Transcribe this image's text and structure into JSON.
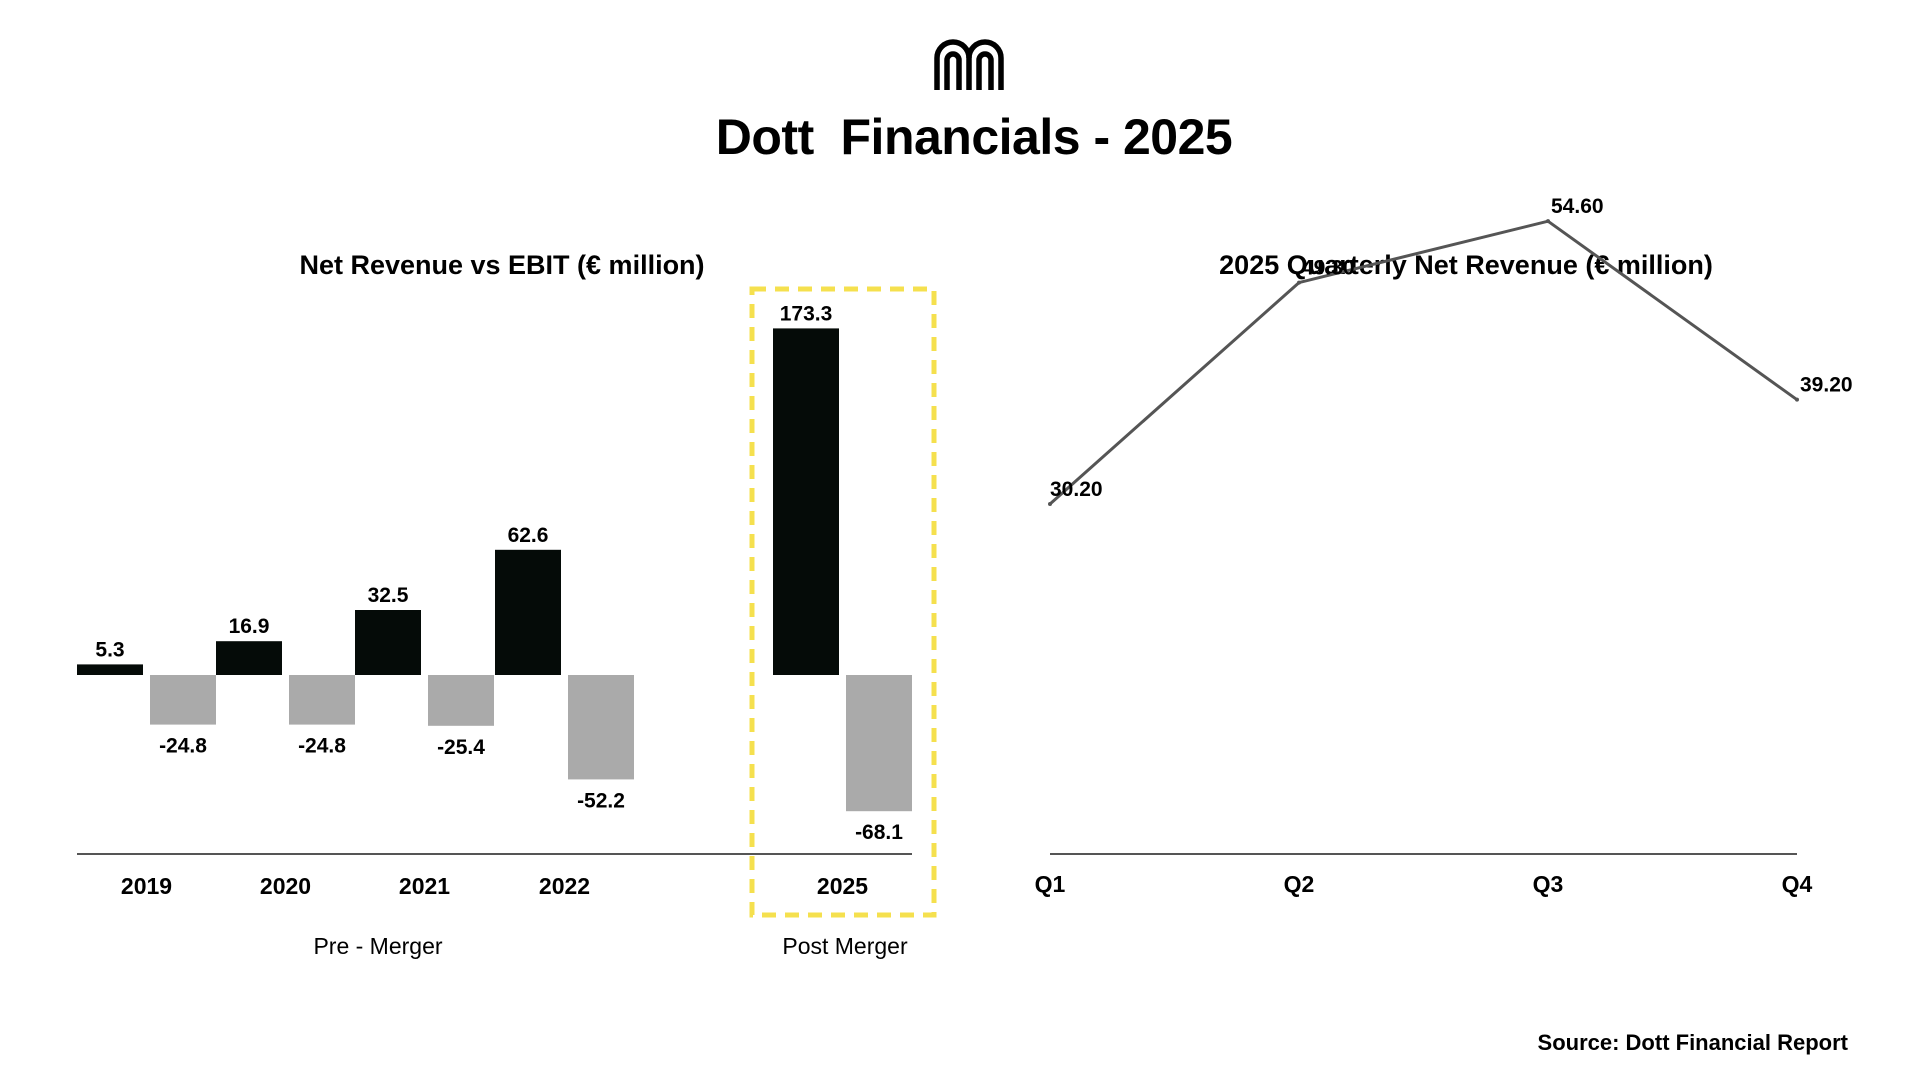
{
  "header": {
    "logo_icon": "dott-logo-icon",
    "title": "Dott  Financials - 2025"
  },
  "footer": {
    "source": "Source: Dott Financial Report"
  },
  "colors": {
    "revenue": "#050b08",
    "ebit": "#aaaaaa",
    "highlight": "#f5e04e",
    "line": "#555555",
    "axis": "#555555"
  },
  "chart_data": [
    {
      "id": "left",
      "type": "bar",
      "title": "Net Revenue vs EBIT (€ million)",
      "categories": [
        "2019",
        "2020",
        "2021",
        "2022",
        "2025"
      ],
      "series": [
        {
          "name": "Net Revenue",
          "values": [
            5.3,
            16.9,
            32.5,
            62.6,
            173.3
          ],
          "labels": [
            "5.3",
            "16.9",
            "32.5",
            "62.6",
            "173.3"
          ]
        },
        {
          "name": "EBIT",
          "values": [
            -24.8,
            -24.8,
            -25.4,
            -52.2,
            -68.1
          ],
          "labels": [
            "-24.8",
            "-24.8",
            "-25.4",
            "-52.2",
            "-68.1"
          ]
        }
      ],
      "groups": [
        {
          "label": "Pre - Merger",
          "categories": [
            "2019",
            "2020",
            "2021",
            "2022"
          ]
        },
        {
          "label": "Post Merger",
          "categories": [
            "2025"
          ],
          "highlighted": true
        }
      ],
      "xlabel": "",
      "ylabel": "",
      "ylim": [
        -90,
        180
      ],
      "grid": false
    },
    {
      "id": "right",
      "type": "line",
      "title": "2025 Quarterly Net Revenue (€ million)",
      "categories": [
        "Q1",
        "Q2",
        "Q3",
        "Q4"
      ],
      "series": [
        {
          "name": "Net Revenue",
          "values": [
            30.2,
            49.3,
            54.6,
            39.2
          ],
          "labels": [
            "30.20",
            "49.30",
            "54.60",
            "39.20"
          ]
        }
      ],
      "xlabel": "",
      "ylabel": "",
      "ylim": [
        0,
        60
      ],
      "grid": false
    }
  ]
}
